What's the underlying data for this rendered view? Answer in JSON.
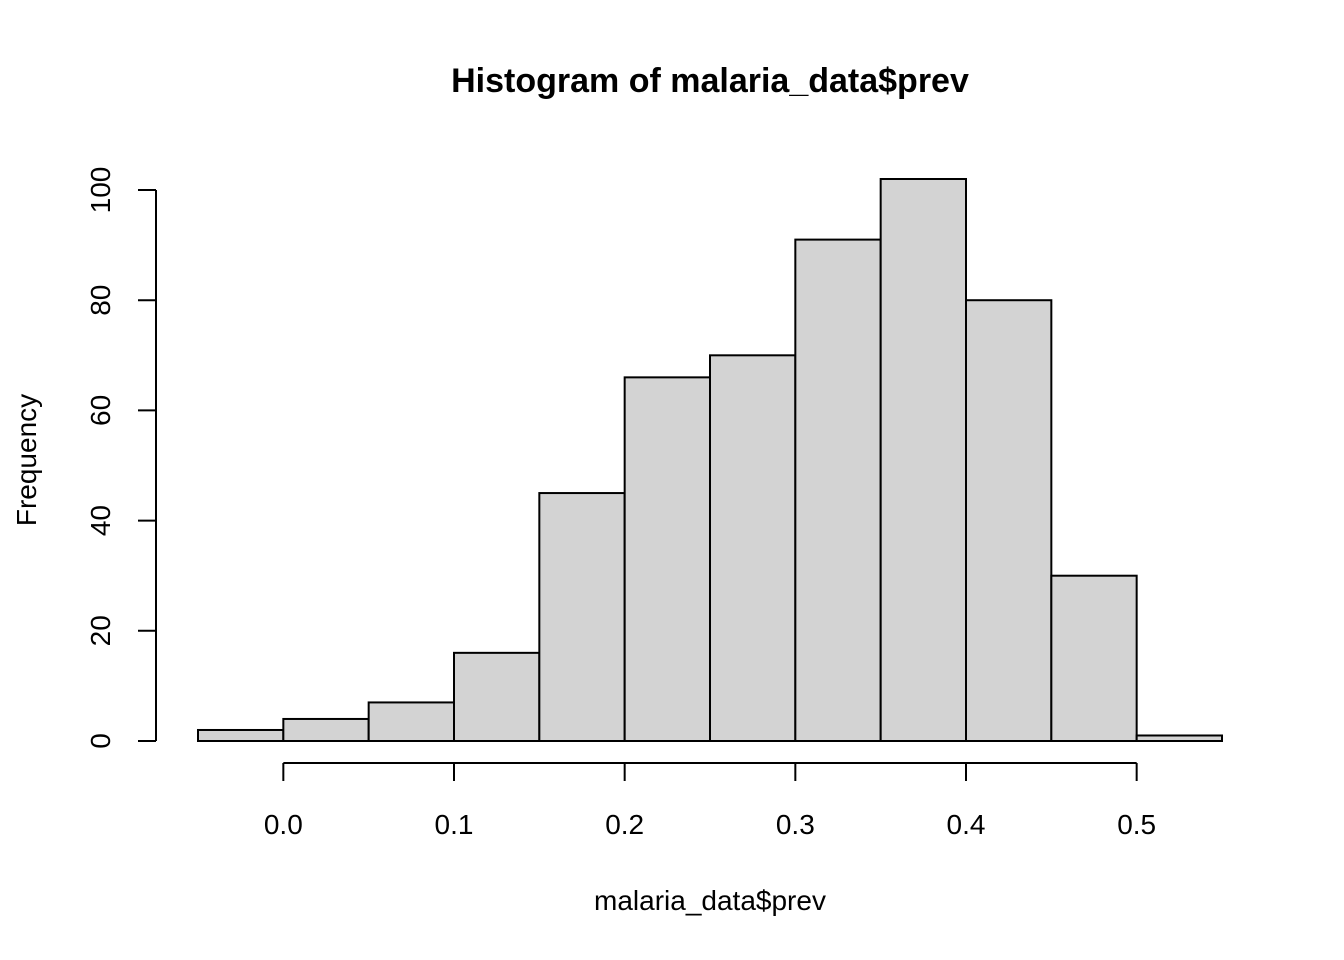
{
  "chart_data": {
    "type": "bar",
    "title": "Histogram of malaria_data$prev",
    "xlabel": "malaria_data$prev",
    "ylabel": "Frequency",
    "bin_edges": [
      -0.05,
      0.0,
      0.05,
      0.1,
      0.15,
      0.2,
      0.25,
      0.3,
      0.35,
      0.4,
      0.45,
      0.5,
      0.55
    ],
    "values": [
      2,
      4,
      7,
      16,
      45,
      66,
      70,
      91,
      102,
      80,
      30,
      1
    ],
    "xlim": [
      -0.05,
      0.55
    ],
    "ylim": [
      0,
      102
    ],
    "x_ticks": [
      0.0,
      0.1,
      0.2,
      0.3,
      0.4,
      0.5
    ],
    "x_tick_labels": [
      "0.0",
      "0.1",
      "0.2",
      "0.3",
      "0.4",
      "0.5"
    ],
    "y_ticks": [
      0,
      20,
      40,
      60,
      80,
      100
    ],
    "y_tick_labels": [
      "0",
      "20",
      "40",
      "60",
      "80",
      "100"
    ],
    "grid": false,
    "legend": "none",
    "colors": {
      "bar_fill": "#d3d3d3",
      "bar_stroke": "#000000",
      "axis": "#000000",
      "background": "#ffffff"
    }
  }
}
